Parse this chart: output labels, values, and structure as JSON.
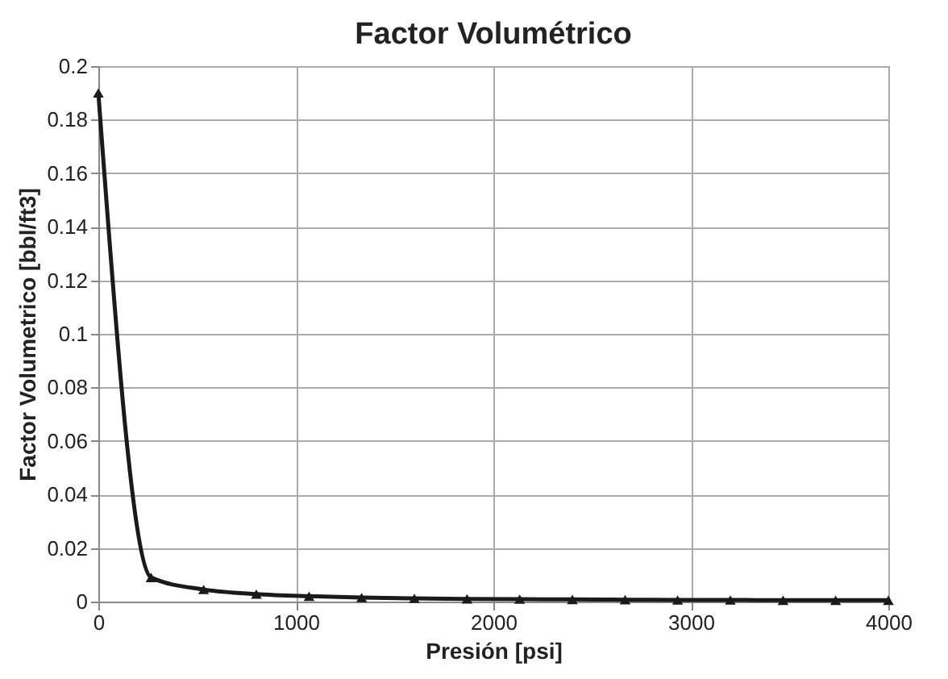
{
  "chart_data": {
    "type": "line",
    "title": "Factor Volumétrico",
    "xlabel": "Presión [psi]",
    "ylabel": "Factor Volumetrico [bbl/ft3]",
    "x": [
      0,
      267,
      533,
      800,
      1067,
      1333,
      1600,
      1867,
      2133,
      2400,
      2667,
      2933,
      3200,
      3467,
      3733,
      4000
    ],
    "series": [
      {
        "color": "#1a1a1a",
        "values": [
          0.19,
          0.009,
          0.0045,
          0.0028,
          0.002,
          0.0015,
          0.0012,
          0.001,
          0.0009,
          0.0008,
          0.0007,
          0.0006,
          0.0006,
          0.0005,
          0.0005,
          0.0005
        ]
      }
    ],
    "xlim": [
      0,
      4000
    ],
    "xticks": [
      0,
      1000,
      2000,
      3000,
      4000
    ],
    "ylim": [
      0,
      0.2
    ],
    "yticks": [
      0,
      0.02,
      0.04,
      0.06,
      0.08,
      0.1,
      0.12,
      0.14,
      0.16,
      0.18,
      0.2
    ],
    "grid": true,
    "marker": "triangle",
    "line_style": "solid"
  }
}
